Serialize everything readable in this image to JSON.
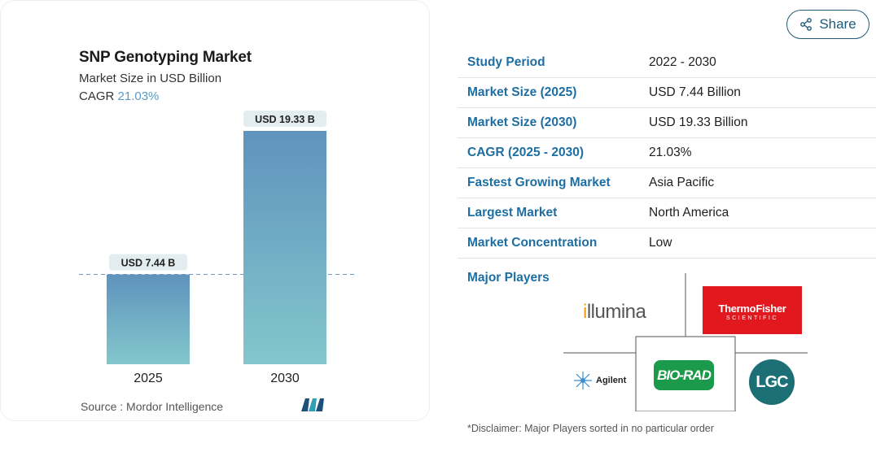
{
  "share": {
    "label": "Share",
    "icon": "share-icon"
  },
  "chart": {
    "title": "SNP Genotyping Market",
    "subtitle": "Market Size in USD Billion",
    "cagr_label": "CAGR",
    "cagr_value": "21.03%",
    "source": "Source :  Mordor Intelligence",
    "brand_icon": "mordor-intelligence-logo",
    "colors": {
      "bar_top": "#5f93bd",
      "bar_bottom": "#83c7cc",
      "label_bg": "#e3ecee",
      "dash": "#6a99c8"
    }
  },
  "chart_data": {
    "type": "bar",
    "categories": [
      "2025",
      "2030"
    ],
    "values": [
      7.44,
      19.33
    ],
    "value_labels": [
      "USD 7.44 B",
      "USD 19.33 B"
    ],
    "title": "SNP Genotyping Market",
    "subtitle": "Market Size in USD Billion",
    "ylim": [
      0,
      20
    ],
    "grid": false,
    "reference_line": 7.44
  },
  "table": {
    "rows": [
      {
        "key": "Study Period",
        "value": "2022 - 2030"
      },
      {
        "key": "Market Size (2025)",
        "value": "USD 7.44 Billion"
      },
      {
        "key": "Market Size (2030)",
        "value": "USD 19.33 Billion"
      },
      {
        "key": "CAGR (2025 - 2030)",
        "value": "21.03%"
      },
      {
        "key": "Fastest Growing Market",
        "value": "Asia Pacific"
      },
      {
        "key": "Largest Market",
        "value": "North America"
      },
      {
        "key": "Market Concentration",
        "value": "Low"
      }
    ]
  },
  "players": {
    "label": "Major Players",
    "logos": {
      "illumina_a": "i",
      "illumina_b": "llumina",
      "thermo_1": "ThermoFisher",
      "thermo_2": "SCIENTIFIC",
      "agilent": "Agilent",
      "biorad": "BIO-RAD",
      "lgc": "LGC"
    }
  },
  "disclaimer": "*Disclaimer: Major Players sorted in no particular order"
}
